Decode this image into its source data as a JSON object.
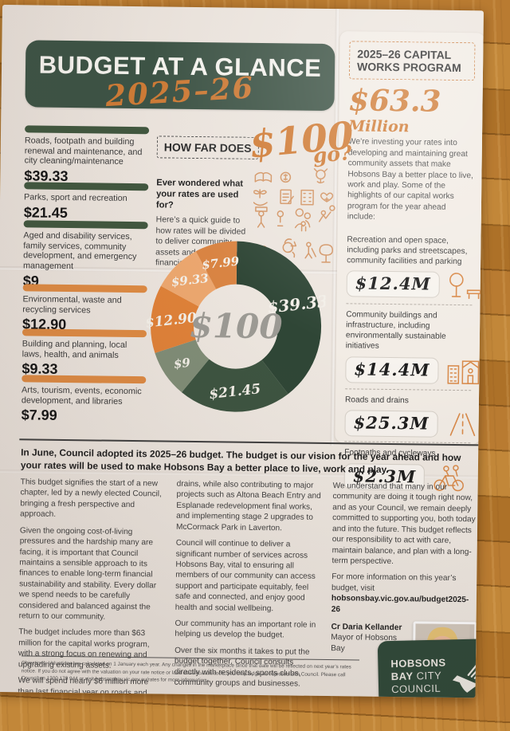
{
  "header": {
    "title": "BUDGET AT A GLANCE",
    "year": "2025–26"
  },
  "capital_works": {
    "heading": "2025–26 CAPITAL WORKS PROGRAM",
    "amount": "$63.3",
    "amount_unit": "Million",
    "intro": "We’re investing your rates into developing and maintaining great community assets that make Hobsons Bay a better place to live, work and play. Some of the highlights of our capital works program for the year ahead include:",
    "items": [
      {
        "label": "Recreation and open space, including parks and streetscapes, community facilities and parking",
        "value": "$12.4M",
        "icon": "park-icon"
      },
      {
        "label": "Community buildings and infrastructure, including environmentally sustainable initiatives",
        "value": "$14.4M",
        "icon": "buildings-icon"
      },
      {
        "label": "Roads and drains",
        "value": "$25.3M",
        "icon": "road-icon"
      },
      {
        "label": "Footpaths and cycleways",
        "value": "$2.3M",
        "icon": "cycling-icon"
      }
    ]
  },
  "rates": {
    "items": [
      {
        "label": "Roads, footpath and building renewal and maintenance, and city cleaning/maintenance",
        "value": "$39.33",
        "bar": "green"
      },
      {
        "label": "Parks, sport and recreation",
        "value": "$21.45",
        "bar": "green"
      },
      {
        "label": "Aged and disability services, family services, community development, and emergency management",
        "value": "$9",
        "bar": "green"
      },
      {
        "label": "Environmental, waste and recycling services",
        "value": "$12.90",
        "bar": "orange"
      },
      {
        "label": "Building and planning, local laws, health, and animals",
        "value": "$9.33",
        "bar": "orange"
      },
      {
        "label": "Arts, tourism, events, economic development, and libraries",
        "value": "$7.99",
        "bar": "orange"
      }
    ]
  },
  "how_far": {
    "heading": "HOW FAR DOES",
    "amount": "$100",
    "go": "go?",
    "question": "Ever wondered what your rates are used for?",
    "text": "Here’s a quick guide to how rates will be divided to deliver community assets and services this financial year."
  },
  "chart_data": {
    "type": "pie",
    "style": "donut",
    "center_label": "$100",
    "title": "How far does $100 go?",
    "start_angle_deg": 0,
    "direction": "clockwise",
    "segments": [
      {
        "category": "Roads, footpath and building renewal and maintenance, and city cleaning/maintenance",
        "label": "$39.33",
        "value": 39.33,
        "color": "#2f4636"
      },
      {
        "category": "Parks, sport and recreation",
        "label": "$21.45",
        "value": 21.45,
        "color": "#3d5441"
      },
      {
        "category": "Aged and disability services, family services, community development, and emergency management",
        "label": "$9",
        "value": 9,
        "color": "#808d77"
      },
      {
        "category": "Environmental, waste and recycling services",
        "label": "$12.90",
        "value": 12.9,
        "color": "#df8138"
      },
      {
        "category": "Building and planning, local laws, health, and animals",
        "label": "$9.33",
        "value": 9.33,
        "color": "#eca76f"
      },
      {
        "category": "Arts, tourism, events, economic development, and libraries",
        "label": "$7.99",
        "value": 7.99,
        "color": "#d98443"
      }
    ]
  },
  "article": {
    "intro": "In June, Council adopted its 2025–26 budget. The budget is our vision for the year ahead and how your rates will be used to make Hobsons Bay a better place to live, work and play.",
    "col1": [
      "This budget signifies the start of a new chapter, led by a newly elected Council, bringing a fresh perspective and approach.",
      "Given the ongoing cost-of-living pressures and the hardship many are facing, it is important that Council maintains a sensible approach to its finances to enable long-term financial sustainability and stability. Every dollar we spend needs to be carefully considered and balanced against the return to our community.",
      "The budget includes more than $63 million for the capital works program, with a strong focus on renewing and upgrading existing assets.",
      "We will spend nearly $6 million more than last financial year on roads and"
    ],
    "col2": [
      "drains, while also contributing to major projects such as Altona Beach Entry and Esplanade redevelopment final works, and implementing stage 2 upgrades to McCormack Park in Laverton.",
      "Council will continue to deliver a significant number of services across Hobsons Bay, vital to ensuring all members of our community can access support and participate equitably, feel safe and connected, and enjoy good health and social wellbeing.",
      "Our community has an important role in helping us develop the budget.",
      "Over the six months it takes to put the budget together, Council consults directly with residents, sports clubs, community groups and businesses."
    ],
    "col3_p1": "We understand that many in our community are doing it tough right now, and as your Council, we remain deeply committed to supporting you, both today and into the future. This budget reflects our responsibility to act with care, maintain balance, and plan with a long-term perspective.",
    "more_info_prefix": "For more information on this year’s budget, visit ",
    "more_info_url": "hobsonsbay.vic.gov.au/budget2025-26",
    "mayor_name": "Cr Daria Kellander",
    "mayor_title": "Mayor of Hobsons Bay"
  },
  "footer": {
    "fine_print": "Objections: Valuations are calculated on 1 January each year. Any changes in the marketplace since that date will be reflected on next year’s rates notice. If you do not agree with the valuation on your rate notice or land classification code, you may lodge an objection with Council. Please call Council on 1300 179 944 or visit hobsonsbay.vic.gov.au/rates for more information.",
    "logo": {
      "line1": "HOBSONS",
      "line2_bold": "BAY",
      "line2_light": "CITY",
      "line3": "COUNCIL"
    }
  },
  "colors": {
    "header_green": "#3d5345",
    "logo_green": "#2e4939",
    "accent_orange": "#d07c36",
    "bar_green": "#41573f",
    "bar_orange": "#dd8a43",
    "paper": "#ece5de"
  }
}
